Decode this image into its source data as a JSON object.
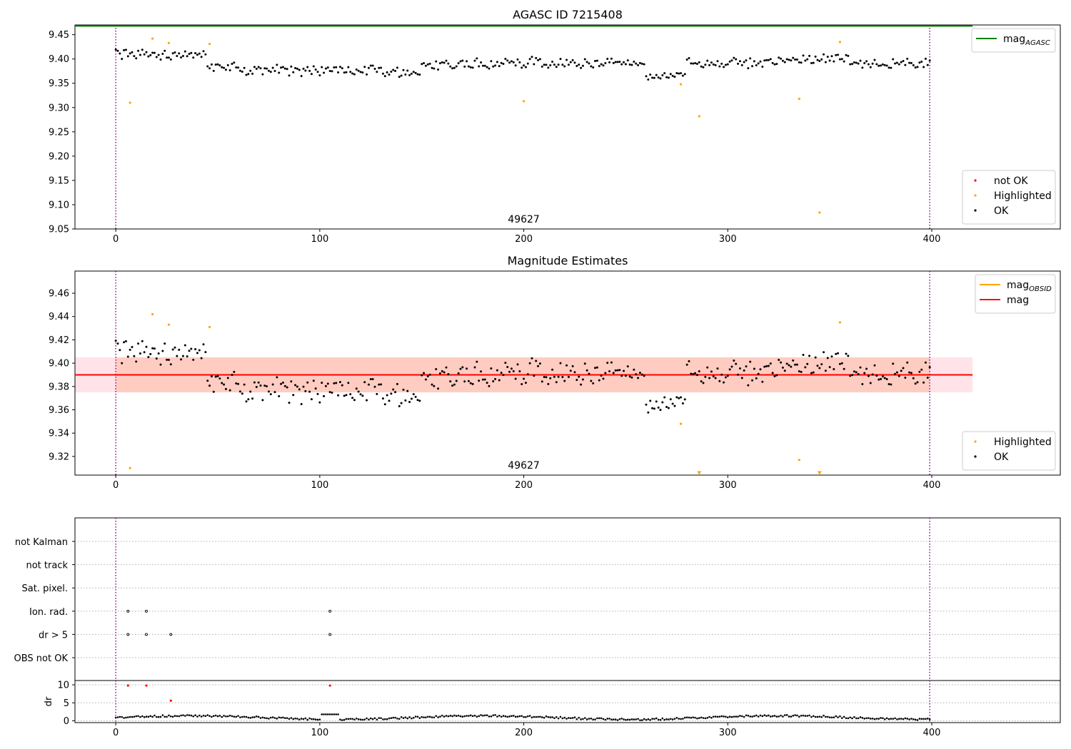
{
  "chart_data": [
    {
      "type": "scatter",
      "title": "AGASC ID 7215408",
      "xlim": [
        -20,
        463
      ],
      "ylim": [
        9.05,
        9.47
      ],
      "xticks": [
        0,
        100,
        200,
        300,
        400
      ],
      "yticks": [
        9.05,
        9.1,
        9.15,
        9.2,
        9.25,
        9.3,
        9.35,
        9.4,
        9.45
      ],
      "ytick_labels": [
        "9.05",
        "9.10",
        "9.15",
        "9.20",
        "9.25",
        "9.30",
        "9.35",
        "9.40",
        "9.45"
      ],
      "obsid_label": {
        "text": "49627",
        "x": 200,
        "y": 9.055
      },
      "vlines": [
        0,
        399
      ],
      "vline_color": "#800080",
      "hline": {
        "y": 9.468,
        "x_from": -20,
        "x_to": 420,
        "color": "#008000"
      },
      "legends": [
        {
          "position": "upper-right",
          "entries": [
            {
              "label": "mag",
              "sub": "AGASC",
              "kind": "line",
              "color": "#008000"
            }
          ]
        },
        {
          "position": "lower-right",
          "entries": [
            {
              "label": "not OK",
              "kind": "dot",
              "color": "#ff0000"
            },
            {
              "label": "Highlighted",
              "kind": "dot",
              "color": "#ffa500"
            },
            {
              "label": "OK",
              "kind": "dot",
              "color": "#000000"
            }
          ]
        }
      ],
      "series": [
        {
          "name": "Highlighted",
          "color": "#ffa500",
          "x": [
            7,
            18,
            26,
            46,
            200,
            277,
            286,
            335,
            345,
            355
          ],
          "y": [
            9.31,
            9.442,
            9.433,
            9.431,
            9.313,
            9.348,
            9.282,
            9.318,
            9.084,
            9.435
          ]
        }
      ]
    },
    {
      "type": "scatter",
      "title": "Magnitude Estimates",
      "xlim": [
        -20,
        463
      ],
      "ylim": [
        9.304,
        9.479
      ],
      "xticks": [
        0,
        100,
        200,
        300,
        400
      ],
      "yticks": [
        9.32,
        9.34,
        9.36,
        9.38,
        9.4,
        9.42,
        9.44,
        9.46
      ],
      "ytick_labels": [
        "9.32",
        "9.34",
        "9.36",
        "9.38",
        "9.40",
        "9.42",
        "9.44",
        "9.46"
      ],
      "obsid_label": {
        "text": "49627",
        "x": 200,
        "y": 9.307
      },
      "vlines": [
        0,
        399
      ],
      "vline_color": "#800080",
      "band_outer": {
        "x_from": -20,
        "x_to": 420,
        "y_from": 9.375,
        "y_to": 9.405,
        "color": "#ffc0cb"
      },
      "band_inner": {
        "x_from": 0,
        "x_to": 399,
        "y_from": 9.375,
        "y_to": 9.405,
        "color": "#ffa07a"
      },
      "mean_line": {
        "y": 9.39,
        "x_from": -20,
        "x_to": 420,
        "color": "#ff0000"
      },
      "legends": [
        {
          "position": "upper-right",
          "entries": [
            {
              "label": "mag",
              "sub": "OBSID",
              "kind": "line",
              "color": "#ffa500"
            },
            {
              "label": "mag",
              "kind": "line",
              "color": "#ff0000"
            }
          ]
        },
        {
          "position": "lower-right",
          "entries": [
            {
              "label": "Highlighted",
              "kind": "dot",
              "color": "#ffa500"
            },
            {
              "label": "OK",
              "kind": "dot",
              "color": "#000000"
            }
          ]
        }
      ],
      "series": [
        {
          "name": "Highlighted",
          "color": "#ffa500",
          "x": [
            7,
            18,
            26,
            46,
            277,
            335,
            355
          ],
          "y": [
            9.31,
            9.442,
            9.433,
            9.431,
            9.348,
            9.317,
            9.435
          ]
        },
        {
          "name": "Highlighted",
          "color": "#ffa500",
          "marker": "triangle-down",
          "x": [
            286,
            345
          ],
          "y": [
            9.3055,
            9.3055
          ]
        }
      ]
    },
    {
      "type": "scatter",
      "title": "",
      "xlim": [
        -20,
        463
      ],
      "ylim": [
        -0.5,
        7.5
      ],
      "categories": [
        "not Kalman",
        "not track",
        "Sat. pixel.",
        "Ion. rad.",
        "dr > 5",
        "OBS not OK"
      ],
      "flag_points": [
        {
          "category": "Ion. rad.",
          "x": [
            6,
            15,
            105
          ]
        },
        {
          "category": "dr > 5",
          "x": [
            6,
            15,
            27,
            105
          ]
        }
      ],
      "vlines": [
        0,
        399
      ],
      "vline_color": "#800080"
    },
    {
      "type": "scatter",
      "title": "",
      "ylabel": "dr",
      "xlim": [
        -20,
        463
      ],
      "ylim": [
        -0.5,
        11.2
      ],
      "xticks": [
        0,
        100,
        200,
        300,
        400
      ],
      "yticks": [
        0,
        5,
        10
      ],
      "ytick_labels": [
        "0",
        "5",
        "10"
      ],
      "vlines": [
        0,
        399
      ],
      "vline_color": "#800080",
      "series": [
        {
          "name": "not OK",
          "color": "#ff0000",
          "x": [
            6,
            15,
            27,
            105
          ],
          "y": [
            9.8,
            9.8,
            5.6,
            9.8
          ]
        }
      ]
    }
  ]
}
